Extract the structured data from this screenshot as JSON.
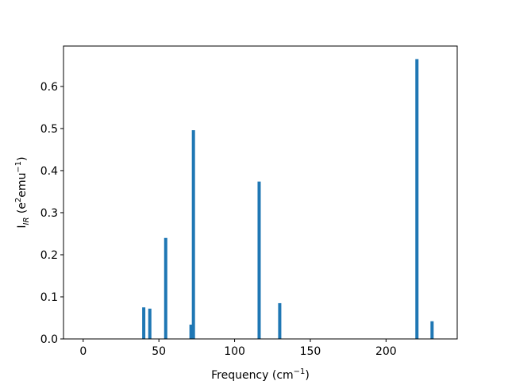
{
  "chart_data": {
    "type": "bar",
    "xlabel": [
      "Frequency (cm",
      "−1",
      ")"
    ],
    "ylabel": [
      "I",
      "IR",
      " (e",
      "2",
      "emu",
      "−1",
      ")"
    ],
    "x": [
      40,
      44,
      54.5,
      71.2,
      72.8,
      116.2,
      129.8,
      220.4,
      230.4
    ],
    "values": [
      0.075,
      0.072,
      0.24,
      0.034,
      0.496,
      0.374,
      0.085,
      0.665,
      0.042
    ],
    "color": "#1f77b4",
    "xlim": [
      -13,
      247
    ],
    "xticks": [
      0,
      50,
      100,
      150,
      200
    ],
    "ylim": [
      0,
      0.696
    ],
    "yticks": [
      {
        "value": 0,
        "label": "0.0"
      },
      0.1,
      0.2,
      0.3,
      0.4,
      0.5,
      0.6
    ]
  }
}
